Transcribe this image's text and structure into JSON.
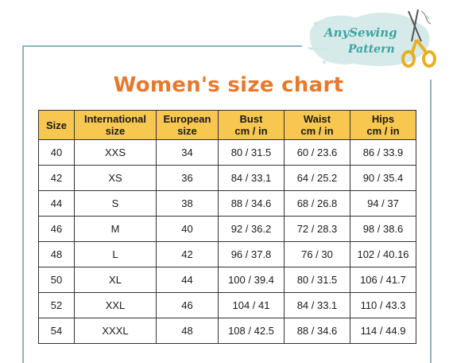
{
  "logo": {
    "line1": "AnySewing",
    "line2": "Pattern",
    "icon": "scissors-icon",
    "colors": {
      "text": "#3aa6a1",
      "splash": "#cfe6e6",
      "scissors": "#e8b020"
    }
  },
  "title": "Women's size chart",
  "colors": {
    "title": "#e8792b",
    "header_bg": "#f7c750",
    "frame": "#8fb3c0"
  },
  "table": {
    "headers": [
      {
        "line1": "Size",
        "line2": ""
      },
      {
        "line1": "International",
        "line2": "size"
      },
      {
        "line1": "European",
        "line2": "size"
      },
      {
        "line1": "Bust",
        "line2": "cm / in"
      },
      {
        "line1": "Waist",
        "line2": "cm / in"
      },
      {
        "line1": "Hips",
        "line2": "cm / in"
      }
    ],
    "rows": [
      [
        "40",
        "XXS",
        "34",
        "80 / 31.5",
        "60 / 23.6",
        "86 / 33.9"
      ],
      [
        "42",
        "XS",
        "36",
        "84 / 33.1",
        "64 / 25.2",
        "90 / 35.4"
      ],
      [
        "44",
        "S",
        "38",
        "88 / 34.6",
        "68 / 26.8",
        "94 / 37"
      ],
      [
        "46",
        "M",
        "40",
        "92 / 36.2",
        "72 / 28.3",
        "98 / 38.6"
      ],
      [
        "48",
        "L",
        "42",
        "96 / 37.8",
        "76 / 30",
        "102 / 40.16"
      ],
      [
        "50",
        "XL",
        "44",
        "100 / 39.4",
        "80 / 31.5",
        "106 / 41.7"
      ],
      [
        "52",
        "XXL",
        "46",
        "104 / 41",
        "84 / 33.1",
        "110 / 43.3"
      ],
      [
        "54",
        "XXXL",
        "48",
        "108 / 42.5",
        "88 / 34.6",
        "114 / 44.9"
      ]
    ]
  }
}
